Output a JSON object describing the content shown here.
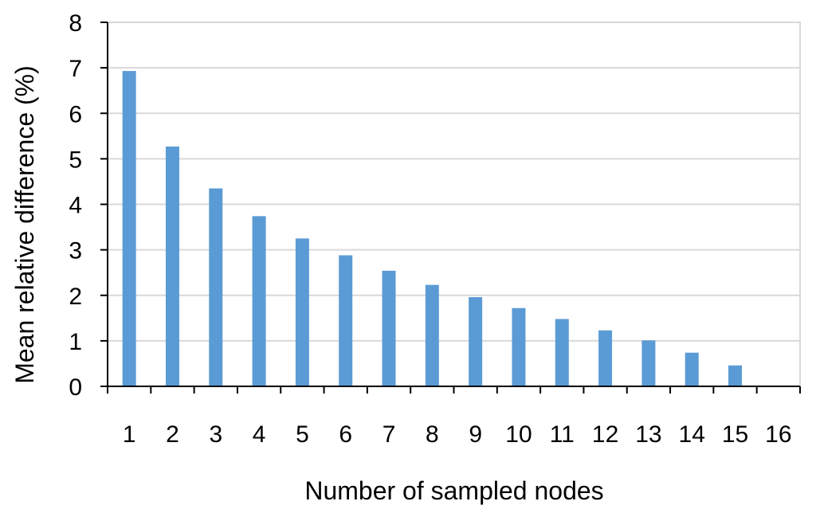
{
  "chart_data": {
    "type": "bar",
    "title": "",
    "xlabel": "Number of sampled nodes",
    "ylabel": "Mean relative difference (%)",
    "categories": [
      "1",
      "2",
      "3",
      "4",
      "5",
      "6",
      "7",
      "8",
      "9",
      "10",
      "11",
      "12",
      "13",
      "14",
      "15",
      "16"
    ],
    "values": [
      6.93,
      5.27,
      4.35,
      3.74,
      3.25,
      2.88,
      2.54,
      2.23,
      1.96,
      1.72,
      1.48,
      1.23,
      1.01,
      0.74,
      0.46,
      0
    ],
    "ylim": [
      0,
      8
    ],
    "yticks": [
      "0",
      "1",
      "2",
      "3",
      "4",
      "5",
      "6",
      "7",
      "8"
    ],
    "grid": true,
    "legend": "none",
    "bar_color": "#5B9BD5",
    "grid_color": "#D9D9D9",
    "axis_color": "#000000"
  }
}
